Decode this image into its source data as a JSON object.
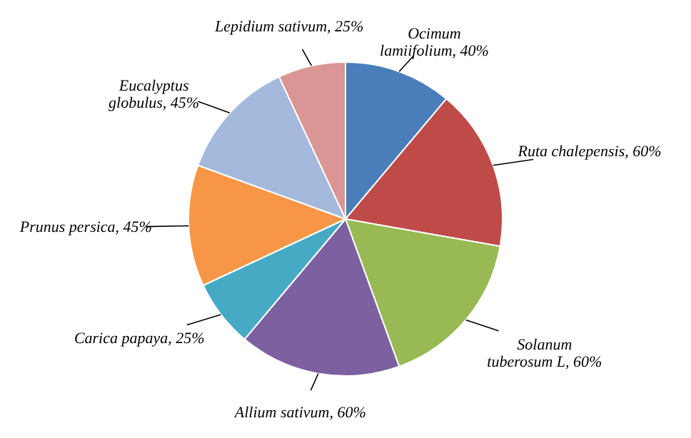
{
  "chart_data": {
    "type": "pie",
    "categories": [
      "Ocimum lamiifolium",
      "Ruta chalepensis",
      "Solanum tuberosum L",
      "Allium sativum",
      "Carica papaya",
      "Prunus persica",
      "Eucalyptus globulus",
      "Lepidium sativum"
    ],
    "values": [
      40,
      60,
      60,
      60,
      25,
      45,
      45,
      25
    ],
    "value_labels": [
      "40%",
      "60%",
      "60%",
      "60%",
      "25%",
      "45%",
      "45%",
      "25%"
    ],
    "colors": [
      "#4a7ebb",
      "#be4b48",
      "#98b954",
      "#7d60a0",
      "#46aac5",
      "#f79646",
      "#a5b9dc",
      "#d99694"
    ]
  }
}
